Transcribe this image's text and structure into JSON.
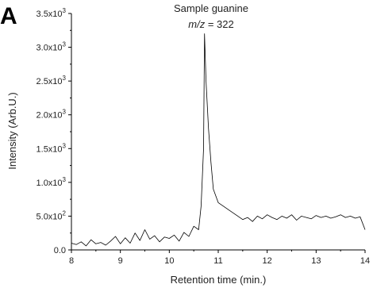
{
  "figure": {
    "panel_label": "A"
  },
  "chart_data": {
    "type": "line",
    "title": "",
    "annotation": {
      "line1": "Sample guanine",
      "mz_symbol": "m/z",
      "mz_rest": " = 322"
    },
    "xlabel": "Retention time (min.)",
    "ylabel": "Intensity (Arb.U.)",
    "xlim": [
      8,
      14
    ],
    "ylim": [
      0,
      3500
    ],
    "x_ticks": [
      8,
      9,
      10,
      11,
      12,
      13,
      14
    ],
    "x_tick_labels": [
      "8",
      "9",
      "10",
      "11",
      "12",
      "13",
      "14"
    ],
    "y_ticks": [
      0,
      500,
      1000,
      1500,
      2000,
      2500,
      3000,
      3500
    ],
    "y_tick_labels": [
      {
        "mant": "0.0",
        "exp": ""
      },
      {
        "mant": "5.0x10",
        "exp": "2"
      },
      {
        "mant": "1.0x10",
        "exp": "3"
      },
      {
        "mant": "1.5x10",
        "exp": "3"
      },
      {
        "mant": "2.0x10",
        "exp": "3"
      },
      {
        "mant": "2.5x10",
        "exp": "3"
      },
      {
        "mant": "3.0x10",
        "exp": "3"
      },
      {
        "mant": "3.5x10",
        "exp": "3"
      }
    ],
    "grid": false,
    "legend": "none",
    "series": [
      {
        "color": "#000000",
        "x": [
          8.0,
          8.1,
          8.2,
          8.3,
          8.4,
          8.5,
          8.6,
          8.7,
          8.8,
          8.9,
          9.0,
          9.1,
          9.2,
          9.3,
          9.4,
          9.5,
          9.6,
          9.7,
          9.8,
          9.9,
          10.0,
          10.1,
          10.2,
          10.3,
          10.4,
          10.5,
          10.6,
          10.65,
          10.7,
          10.72,
          10.75,
          10.8,
          10.85,
          10.9,
          11.0,
          11.1,
          11.2,
          11.3,
          11.4,
          11.5,
          11.6,
          11.7,
          11.8,
          11.9,
          12.0,
          12.1,
          12.2,
          12.3,
          12.4,
          12.5,
          12.6,
          12.7,
          12.8,
          12.9,
          13.0,
          13.1,
          13.2,
          13.3,
          13.4,
          13.5,
          13.6,
          13.7,
          13.8,
          13.9,
          14.0
        ],
        "y": [
          100,
          80,
          120,
          60,
          150,
          90,
          110,
          70,
          130,
          200,
          90,
          180,
          100,
          250,
          140,
          300,
          160,
          210,
          120,
          190,
          170,
          220,
          130,
          260,
          200,
          350,
          300,
          650,
          1500,
          3200,
          2500,
          1800,
          1300,
          900,
          700,
          650,
          600,
          550,
          500,
          450,
          480,
          420,
          500,
          460,
          520,
          480,
          450,
          500,
          470,
          520,
          440,
          500,
          480,
          460,
          510,
          480,
          500,
          470,
          490,
          520,
          480,
          500,
          470,
          490,
          300
        ]
      }
    ]
  }
}
